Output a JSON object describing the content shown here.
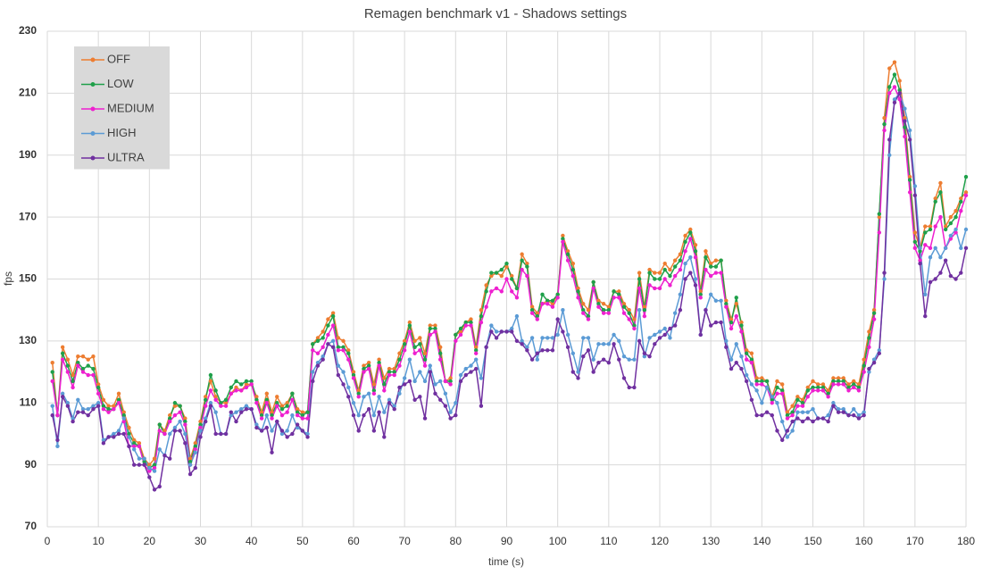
{
  "chart_data": {
    "type": "line",
    "title": "Remagen benchmark v1 - Shadows settings",
    "x_label": "time (s)",
    "y_label": "fps",
    "xlim": [
      0,
      180
    ],
    "xticks": [
      0,
      10,
      20,
      30,
      40,
      50,
      60,
      70,
      80,
      90,
      100,
      110,
      120,
      130,
      140,
      150,
      160,
      170,
      180
    ],
    "ylim": [
      70,
      230
    ],
    "yticks": [
      70,
      90,
      110,
      130,
      150,
      170,
      190,
      210,
      230
    ],
    "grid": true,
    "legend": "upper left",
    "x": [
      1,
      2,
      3,
      4,
      5,
      6,
      7,
      8,
      9,
      10,
      11,
      12,
      13,
      14,
      15,
      16,
      17,
      18,
      19,
      20,
      21,
      22,
      23,
      24,
      25,
      26,
      27,
      28,
      29,
      30,
      31,
      32,
      33,
      34,
      35,
      36,
      37,
      38,
      39,
      40,
      41,
      42,
      43,
      44,
      45,
      46,
      47,
      48,
      49,
      50,
      51,
      52,
      53,
      54,
      55,
      56,
      57,
      58,
      59,
      60,
      61,
      62,
      63,
      64,
      65,
      66,
      67,
      68,
      69,
      70,
      71,
      72,
      73,
      74,
      75,
      76,
      77,
      78,
      79,
      80,
      81,
      82,
      83,
      84,
      85,
      86,
      87,
      88,
      89,
      90,
      91,
      92,
      93,
      94,
      95,
      96,
      97,
      98,
      99,
      100,
      101,
      102,
      103,
      104,
      105,
      106,
      107,
      108,
      109,
      110,
      111,
      112,
      113,
      114,
      115,
      116,
      117,
      118,
      119,
      120,
      121,
      122,
      123,
      124,
      125,
      126,
      127,
      128,
      129,
      130,
      131,
      132,
      133,
      134,
      135,
      136,
      137,
      138,
      139,
      140,
      141,
      142,
      143,
      144,
      145,
      146,
      147,
      148,
      149,
      150,
      151,
      152,
      153,
      154,
      155,
      156,
      157,
      158,
      159,
      160,
      161,
      162,
      163,
      164,
      165,
      166,
      167,
      168,
      169,
      170,
      171,
      172,
      173,
      174,
      175,
      176,
      177,
      178,
      179,
      180
    ],
    "series": [
      {
        "name": "OFF",
        "color": "#ed7d31",
        "values": [
          123,
          106,
          128,
          124,
          119,
          125,
          125,
          124,
          125,
          116,
          111,
          109,
          109,
          113,
          107,
          102,
          98,
          97,
          92,
          90,
          92,
          103,
          101,
          106,
          109,
          109,
          105,
          92,
          97,
          104,
          112,
          117,
          112,
          110,
          110,
          113,
          115,
          114,
          116,
          116,
          112,
          107,
          113,
          107,
          112,
          109,
          110,
          113,
          108,
          107,
          107,
          129,
          131,
          133,
          137,
          139,
          131,
          130,
          127,
          120,
          114,
          122,
          123,
          116,
          124,
          118,
          121,
          121,
          126,
          130,
          136,
          130,
          131,
          126,
          135,
          135,
          128,
          117,
          118,
          132,
          133,
          136,
          137,
          128,
          140,
          148,
          151,
          152,
          151,
          154,
          151,
          147,
          158,
          155,
          141,
          139,
          142,
          143,
          142,
          145,
          164,
          159,
          155,
          147,
          142,
          140,
          149,
          143,
          142,
          141,
          146,
          146,
          142,
          140,
          137,
          152,
          141,
          153,
          152,
          152,
          155,
          153,
          156,
          158,
          164,
          166,
          161,
          146,
          159,
          155,
          156,
          156,
          143,
          137,
          142,
          136,
          127,
          126,
          118,
          118,
          117,
          112,
          117,
          116,
          107,
          109,
          112,
          111,
          115,
          117,
          116,
          116,
          114,
          118,
          118,
          118,
          116,
          117,
          116,
          124,
          133,
          140,
          170,
          202,
          218,
          220,
          214,
          202,
          183,
          165,
          160,
          167,
          167,
          176,
          181,
          167,
          170,
          172,
          176,
          178
        ]
      },
      {
        "name": "LOW",
        "color": "#1fa04a",
        "values": [
          120,
          106,
          126,
          122,
          117,
          123,
          121,
          122,
          121,
          115,
          109,
          108,
          108,
          111,
          106,
          100,
          97,
          96,
          91,
          89,
          90,
          103,
          100,
          105,
          110,
          109,
          104,
          91,
          96,
          103,
          111,
          119,
          114,
          110,
          111,
          115,
          117,
          116,
          117,
          117,
          111,
          106,
          111,
          106,
          110,
          108,
          109,
          113,
          107,
          106,
          107,
          129,
          130,
          131,
          135,
          138,
          128,
          128,
          126,
          119,
          113,
          121,
          122,
          114,
          123,
          116,
          120,
          120,
          124,
          129,
          135,
          128,
          129,
          124,
          134,
          134,
          126,
          117,
          117,
          132,
          134,
          136,
          136,
          127,
          138,
          146,
          152,
          152,
          153,
          155,
          150,
          147,
          156,
          154,
          140,
          138,
          145,
          143,
          143,
          145,
          163,
          158,
          153,
          146,
          140,
          138,
          149,
          142,
          140,
          140,
          146,
          145,
          141,
          139,
          135,
          150,
          140,
          152,
          150,
          150,
          153,
          151,
          154,
          156,
          162,
          165,
          159,
          145,
          157,
          154,
          154,
          156,
          142,
          136,
          144,
          135,
          126,
          124,
          117,
          117,
          117,
          111,
          115,
          114,
          106,
          107,
          111,
          110,
          114,
          115,
          115,
          115,
          113,
          117,
          117,
          117,
          115,
          116,
          115,
          122,
          131,
          139,
          171,
          200,
          212,
          216,
          211,
          199,
          182,
          162,
          159,
          165,
          166,
          175,
          178,
          166,
          168,
          170,
          175,
          183
        ]
      },
      {
        "name": "MEDIUM",
        "color": "#ee20cf",
        "values": [
          117,
          106,
          124,
          120,
          115,
          122,
          120,
          119,
          119,
          113,
          108,
          107,
          108,
          110,
          104,
          96,
          96,
          96,
          90,
          88,
          89,
          101,
          100,
          104,
          106,
          107,
          103,
          90,
          95,
          102,
          109,
          114,
          111,
          109,
          109,
          113,
          114,
          114,
          115,
          116,
          110,
          105,
          110,
          105,
          109,
          106,
          107,
          111,
          106,
          105,
          105,
          127,
          126,
          128,
          132,
          135,
          127,
          127,
          124,
          118,
          112,
          120,
          121,
          113,
          122,
          114,
          119,
          119,
          122,
          127,
          133,
          126,
          127,
          122,
          132,
          133,
          124,
          117,
          116,
          130,
          132,
          135,
          135,
          126,
          136,
          141,
          146,
          147,
          146,
          150,
          146,
          144,
          153,
          151,
          139,
          137,
          142,
          142,
          141,
          144,
          162,
          156,
          151,
          144,
          139,
          137,
          147,
          141,
          139,
          139,
          144,
          144,
          139,
          137,
          134,
          147,
          138,
          148,
          147,
          147,
          150,
          148,
          151,
          153,
          159,
          163,
          157,
          144,
          153,
          151,
          152,
          152,
          141,
          134,
          138,
          133,
          124,
          123,
          116,
          116,
          115,
          110,
          113,
          113,
          105,
          106,
          109,
          109,
          112,
          114,
          114,
          114,
          112,
          116,
          116,
          116,
          114,
          115,
          114,
          120,
          128,
          137,
          165,
          198,
          210,
          212,
          208,
          196,
          178,
          160,
          156,
          161,
          160,
          167,
          170,
          160,
          163,
          165,
          172,
          177
        ]
      },
      {
        "name": "HIGH",
        "color": "#5b9bd5",
        "values": [
          109,
          96,
          113,
          110,
          105,
          111,
          108,
          108,
          109,
          110,
          98,
          99,
          100,
          101,
          105,
          99,
          95,
          92,
          92,
          89,
          88,
          95,
          93,
          100,
          102,
          104,
          100,
          90,
          94,
          101,
          105,
          110,
          107,
          100,
          100,
          106,
          107,
          108,
          109,
          108,
          103,
          101,
          106,
          101,
          104,
          100,
          101,
          106,
          102,
          101,
          100,
          120,
          123,
          125,
          129,
          130,
          122,
          120,
          115,
          110,
          106,
          112,
          113,
          106,
          112,
          107,
          111,
          109,
          113,
          118,
          124,
          117,
          120,
          117,
          122,
          116,
          117,
          113,
          107,
          110,
          119,
          121,
          122,
          124,
          118,
          128,
          135,
          133,
          133,
          133,
          134,
          138,
          130,
          128,
          131,
          124,
          131,
          131,
          131,
          132,
          140,
          132,
          126,
          120,
          131,
          131,
          124,
          129,
          129,
          129,
          132,
          130,
          125,
          124,
          124,
          140,
          125,
          131,
          132,
          133,
          134,
          131,
          139,
          145,
          155,
          157,
          150,
          132,
          140,
          145,
          143,
          143,
          130,
          124,
          129,
          125,
          119,
          116,
          114,
          110,
          115,
          112,
          110,
          104,
          99,
          101,
          107,
          107,
          107,
          108,
          105,
          105,
          106,
          110,
          108,
          108,
          106,
          108,
          106,
          107,
          120,
          124,
          127,
          150,
          190,
          208,
          210,
          205,
          198,
          180,
          160,
          145,
          157,
          160,
          157,
          160,
          164,
          166,
          160,
          166
        ]
      },
      {
        "name": "ULTRA",
        "color": "#7030a0",
        "values": [
          106,
          98,
          112,
          109,
          104,
          107,
          107,
          106,
          108,
          109,
          97,
          99,
          99,
          100,
          100,
          96,
          90,
          90,
          90,
          86,
          82,
          83,
          93,
          92,
          101,
          101,
          97,
          87,
          89,
          99,
          104,
          109,
          100,
          100,
          100,
          107,
          104,
          107,
          108,
          108,
          102,
          101,
          102,
          94,
          104,
          101,
          99,
          100,
          103,
          101,
          99,
          117,
          122,
          124,
          129,
          128,
          119,
          116,
          112,
          106,
          101,
          106,
          108,
          101,
          107,
          99,
          110,
          108,
          115,
          116,
          117,
          111,
          112,
          105,
          120,
          113,
          111,
          109,
          105,
          106,
          117,
          119,
          120,
          121,
          109,
          128,
          133,
          131,
          133,
          133,
          133,
          130,
          129,
          127,
          124,
          126,
          127,
          127,
          127,
          137,
          133,
          128,
          120,
          118,
          125,
          127,
          120,
          123,
          124,
          123,
          129,
          124,
          118,
          115,
          115,
          130,
          126,
          125,
          129,
          131,
          132,
          134,
          135,
          140,
          150,
          152,
          148,
          132,
          140,
          135,
          136,
          136,
          128,
          121,
          123,
          121,
          117,
          111,
          106,
          106,
          107,
          106,
          101,
          98,
          101,
          104,
          105,
          104,
          105,
          104,
          105,
          105,
          104,
          109,
          107,
          107,
          106,
          106,
          105,
          106,
          121,
          123,
          126,
          152,
          195,
          207,
          210,
          201,
          195,
          177,
          155,
          138,
          149,
          150,
          152,
          156,
          151,
          150,
          152,
          160
        ]
      }
    ]
  }
}
